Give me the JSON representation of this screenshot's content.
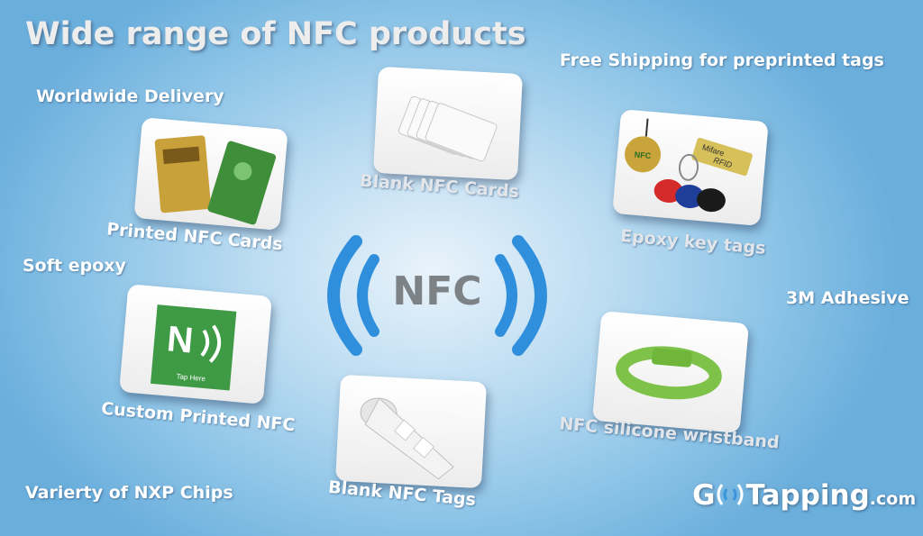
{
  "title": "Wide range of NFC products",
  "features": {
    "worldwide": "Worldwide Delivery",
    "free_shipping": "Free Shipping for preprinted tags",
    "soft_epoxy": "Soft epoxy",
    "adhesive": "3M Adhesive",
    "chips": "Varierty of NXP Chips"
  },
  "center_text": "NFC",
  "products": {
    "printed_cards": "Printed NFC Cards",
    "blank_cards": "Blank NFC Cards",
    "epoxy_tags": "Epoxy key tags",
    "custom_printed": "Custom Printed NFC",
    "blank_tags": "Blank NFC Tags",
    "wristband": "NFC silicone wristband"
  },
  "product_image_text": {
    "epoxy_tag_nfc": "NFC",
    "epoxy_tag_mifare": "Mifare",
    "epoxy_tag_rfid": "RFID",
    "custom_tap": "Tap Here"
  },
  "brand": {
    "logo_g": "G",
    "logo_main": "Tapping",
    "logo_suffix": ".com"
  }
}
